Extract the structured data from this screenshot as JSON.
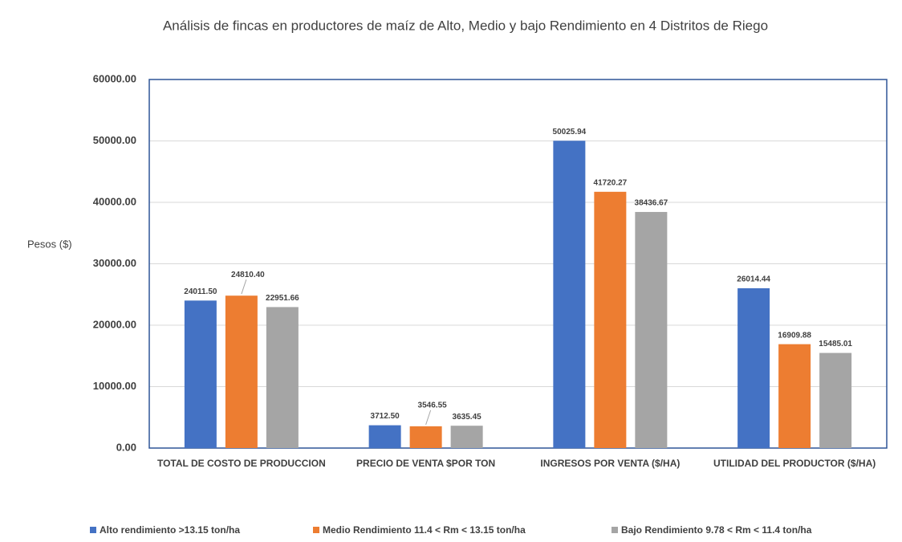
{
  "chart_data": {
    "type": "bar",
    "title": "Análisis de fincas en productores de maíz de Alto, Medio y bajo Rendimiento en 4 Distritos de Riego",
    "ylabel": "Pesos ($)",
    "categories": [
      "TOTAL DE COSTO DE PRODUCCION",
      "PRECIO DE VENTA $POR TON",
      "INGRESOS POR VENTA ($/HA)",
      "UTILIDAD DEL PRODUCTOR ($/HA)"
    ],
    "series": [
      {
        "name": "Alto rendimiento >13.15 ton/ha",
        "color": "#4472c4",
        "values": [
          24011.5,
          3712.5,
          50025.94,
          26014.44
        ],
        "value_labels": [
          "24011.50",
          "3712.50",
          "50025.94",
          "26014.44"
        ]
      },
      {
        "name": "Medio Rendimiento 11.4 < Rm < 13.15 ton/ha",
        "color": "#ed7d31",
        "values": [
          24810.4,
          3546.55,
          41720.27,
          16909.88
        ],
        "value_labels": [
          "24810.40",
          "3546.55",
          "41720.27",
          "16909.88"
        ]
      },
      {
        "name": "Bajo Rendimiento 9.78 < Rm < 11.4 ton/ha",
        "color": "#a5a5a5",
        "values": [
          22951.66,
          3635.45,
          38436.67,
          15485.01
        ],
        "value_labels": [
          "22951.66",
          "3635.45",
          "38436.67",
          "15485.01"
        ]
      }
    ],
    "ylim": [
      0,
      60000
    ],
    "yticks": [
      {
        "value": 0,
        "label": "0.00"
      },
      {
        "value": 10000,
        "label": "10000.00"
      },
      {
        "value": 20000,
        "label": "20000.00"
      },
      {
        "value": 30000,
        "label": "30000.00"
      },
      {
        "value": 40000,
        "label": "40000.00"
      },
      {
        "value": 50000,
        "label": "50000.00"
      },
      {
        "value": 60000,
        "label": "60000.00"
      }
    ],
    "grid": true,
    "legend": "bottom"
  }
}
